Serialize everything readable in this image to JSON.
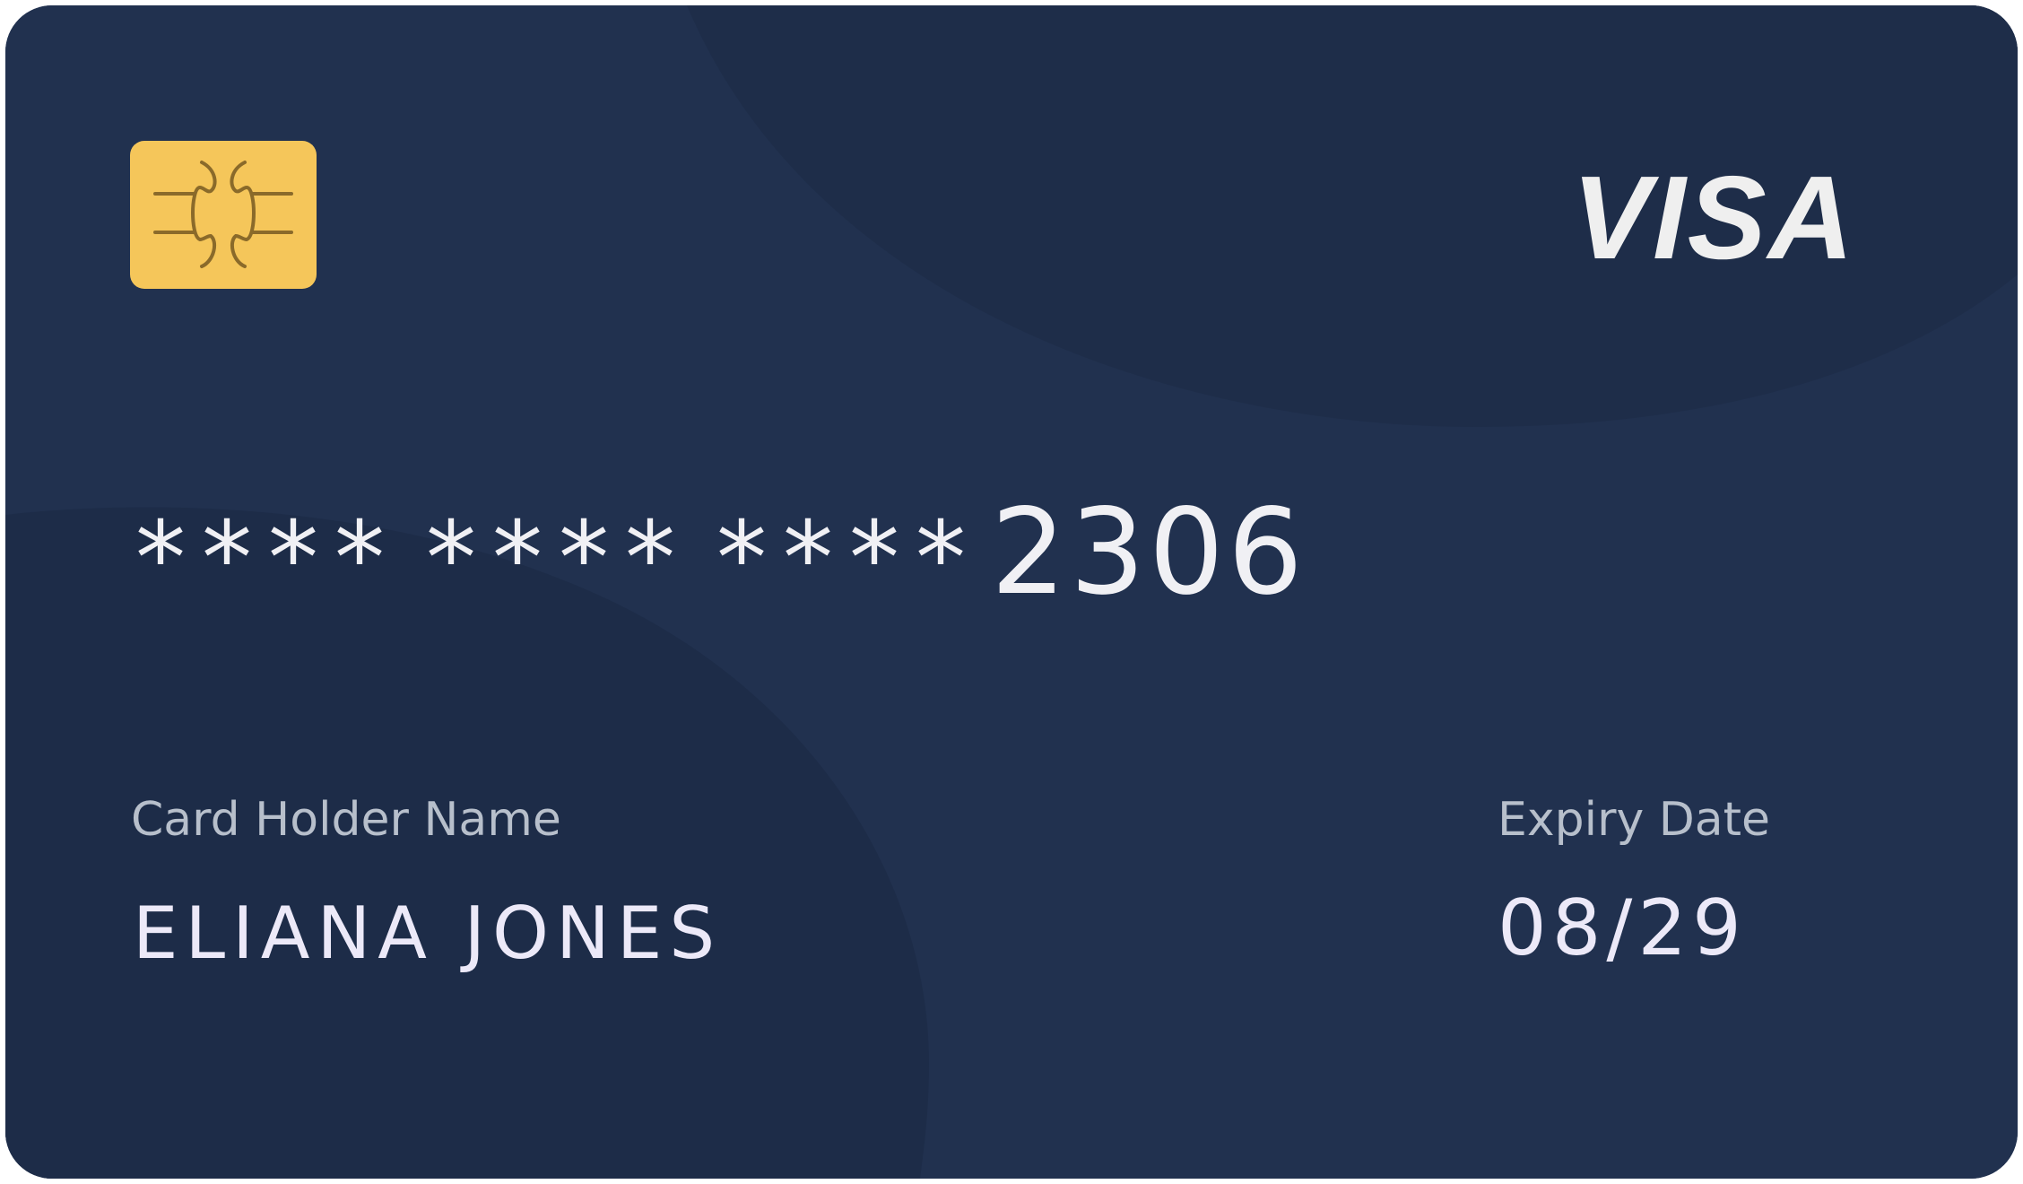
{
  "card": {
    "brand": "VISA",
    "number": {
      "masked_groups": [
        "****",
        "****",
        "****"
      ],
      "last4": "2306"
    },
    "holder": {
      "label": "Card Holder Name",
      "value": "ELIANA JONES"
    },
    "expiry": {
      "label": "Expiry Date",
      "value": "08/29"
    },
    "colors": {
      "background": "#21314f",
      "shade": "#1d2c48",
      "chip": "#f5c65a",
      "chip_lines": "#8a6a2a",
      "text": "#ece9f8",
      "label": "#b7bfcb",
      "logo": "#efefef"
    },
    "icons": {
      "chip": "emv-chip-icon",
      "logo": "visa-logo"
    }
  }
}
